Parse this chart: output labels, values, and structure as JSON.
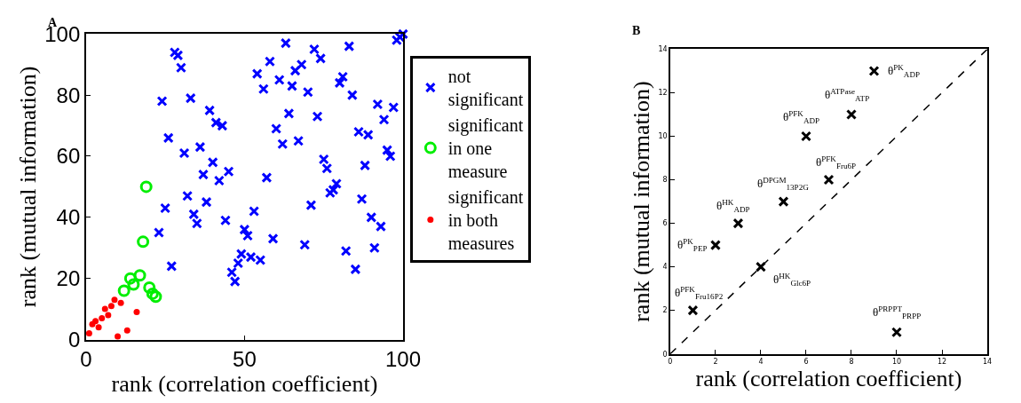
{
  "chart_data": [
    {
      "type": "scatter",
      "title": "A",
      "xlabel": "rank (correlation coefficient)",
      "ylabel": "rank (mutual information)",
      "xlim": [
        0,
        100
      ],
      "ylim": [
        0,
        100
      ],
      "xticks": [
        0,
        50,
        100
      ],
      "yticks": [
        0,
        20,
        40,
        60,
        80,
        100
      ],
      "grid": false,
      "legend": "right",
      "series": [
        {
          "name": "not significant",
          "color": "#0000ff",
          "marker": "cross",
          "x": [
            23,
            24,
            25,
            26,
            27,
            28,
            29,
            30,
            31,
            32,
            33,
            34,
            35,
            36,
            37,
            38,
            39,
            40,
            41,
            42,
            43,
            44,
            45,
            46,
            47,
            48,
            49,
            50,
            51,
            52,
            53,
            54,
            55,
            56,
            57,
            58,
            59,
            60,
            61,
            62,
            63,
            64,
            65,
            66,
            67,
            68,
            69,
            70,
            71,
            72,
            73,
            74,
            75,
            76,
            77,
            78,
            79,
            80,
            81,
            82,
            83,
            84,
            85,
            86,
            87,
            88,
            89,
            90,
            91,
            92,
            93,
            94,
            95,
            96,
            97,
            98,
            99,
            100
          ],
          "values": [
            35,
            78,
            43,
            66,
            24,
            94,
            93,
            89,
            61,
            47,
            79,
            41,
            38,
            63,
            54,
            45,
            75,
            58,
            71,
            52,
            70,
            39,
            55,
            22,
            19,
            25,
            28,
            36,
            34,
            27,
            42,
            87,
            26,
            82,
            53,
            91,
            33,
            69,
            85,
            64,
            97,
            74,
            83,
            88,
            65,
            90,
            31,
            81,
            44,
            95,
            73,
            92,
            59,
            56,
            48,
            49,
            51,
            84,
            86,
            29,
            96,
            80,
            23,
            68,
            46,
            57,
            67,
            40,
            30,
            77,
            37,
            72,
            62,
            60,
            76,
            98,
            99,
            100
          ]
        },
        {
          "name": "significant in one measure",
          "color": "#00ee00",
          "marker": "circle-open",
          "x": [
            12,
            14,
            15,
            17,
            18,
            19,
            20,
            21,
            22
          ],
          "values": [
            16,
            20,
            18,
            21,
            32,
            50,
            17,
            15,
            14
          ]
        },
        {
          "name": "significant in both measures",
          "color": "#ff0000",
          "marker": "circle",
          "x": [
            1,
            2,
            3,
            4,
            5,
            6,
            7,
            8,
            9,
            10,
            11,
            13,
            16
          ],
          "values": [
            2,
            5,
            6,
            4,
            7,
            10,
            8,
            11,
            13,
            1,
            12,
            3,
            9
          ]
        }
      ]
    },
    {
      "type": "scatter",
      "title": "B",
      "xlabel": "rank (correlation coefficient)",
      "ylabel": "rank (mutual information)",
      "xlim": [
        0,
        14
      ],
      "ylim": [
        0,
        14
      ],
      "xticks": [
        0,
        2,
        4,
        6,
        8,
        10,
        12,
        14
      ],
      "yticks": [
        0,
        2,
        4,
        6,
        8,
        10,
        12,
        14
      ],
      "grid": false,
      "legend": false,
      "series": [
        {
          "color": "#000000",
          "marker": "cross",
          "x": [
            1,
            2,
            3,
            4,
            5,
            6,
            7,
            8,
            9,
            10
          ],
          "values": [
            2,
            5,
            6,
            4,
            7,
            10,
            8,
            11,
            13,
            1
          ]
        },
        {
          "type": "line",
          "color": "#000000",
          "line_style": "dashed",
          "x": [
            0,
            14
          ],
          "values": [
            0,
            14
          ]
        }
      ],
      "annotations": [
        {
          "text": "θ$^{PFK}$$_{Fru16P2}$",
          "x": 1,
          "y": 2
        },
        {
          "text": "θ$^{PK}$$_{PEP}$",
          "x": 2,
          "y": 5
        },
        {
          "text": "θ$^{HK}$$_{ADP}$",
          "x": 3,
          "y": 6
        },
        {
          "text": "θ$^{HK}$$_{Glc6P}$",
          "x": 4,
          "y": 4
        },
        {
          "text": "θ$^{DPGM}$$_{13P2G}$",
          "x": 5,
          "y": 7
        },
        {
          "text": "θ$^{PFK}$$_{ADP}$",
          "x": 6,
          "y": 10
        },
        {
          "text": "θ$^{PFK}$$_{Fru6P}$",
          "x": 7,
          "y": 8
        },
        {
          "text": "θ$^{ATPase}$$_{ATP}$",
          "x": 8,
          "y": 11
        },
        {
          "text": "θ$^{PK}$$_{ADP}$",
          "x": 9,
          "y": 13
        },
        {
          "text": "θ$^{PRPPT}$$_{PRPP}$",
          "x": 10,
          "y": 1
        }
      ]
    }
  ]
}
